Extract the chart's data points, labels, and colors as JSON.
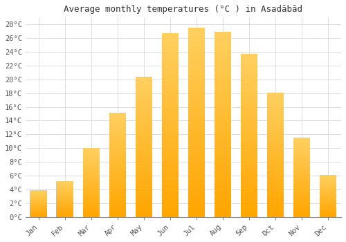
{
  "title": "Average monthly temperatures (°C ) in Asadābād",
  "months": [
    "Jan",
    "Feb",
    "Mar",
    "Apr",
    "May",
    "Jun",
    "Jul",
    "Aug",
    "Sep",
    "Oct",
    "Nov",
    "Dec"
  ],
  "values": [
    3.9,
    5.2,
    10.0,
    15.2,
    20.4,
    26.7,
    27.5,
    26.9,
    23.7,
    18.1,
    11.5,
    6.1
  ],
  "bar_color_bottom": "#FFA500",
  "bar_color_top": "#FFD060",
  "background_color": "#FFFFFF",
  "grid_color": "#DDDDDD",
  "ylim": [
    0,
    29
  ],
  "ytick_step": 2,
  "title_fontsize": 9,
  "tick_fontsize": 7.5,
  "font_family": "monospace",
  "label_color": "#555555"
}
